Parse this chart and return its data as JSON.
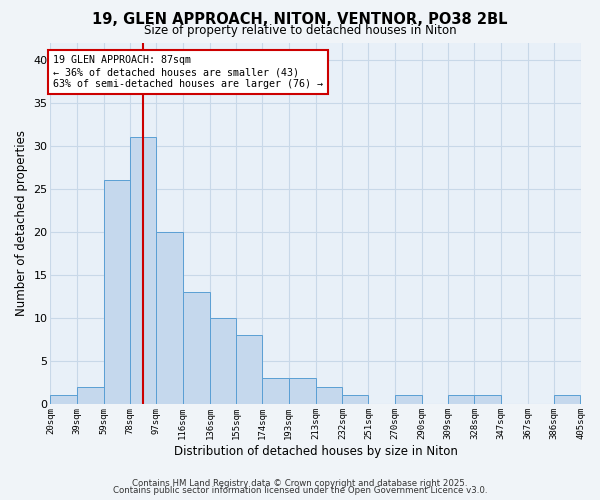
{
  "title": "19, GLEN APPROACH, NITON, VENTNOR, PO38 2BL",
  "subtitle": "Size of property relative to detached houses in Niton",
  "xlabel": "Distribution of detached houses by size in Niton",
  "ylabel": "Number of detached properties",
  "bin_edges": [
    20,
    39,
    59,
    78,
    97,
    116,
    136,
    155,
    174,
    193,
    213,
    232,
    251,
    270,
    290,
    309,
    328,
    347,
    367,
    386,
    405
  ],
  "bar_heights": [
    1,
    2,
    26,
    31,
    20,
    13,
    10,
    8,
    3,
    3,
    2,
    1,
    0,
    1,
    0,
    1,
    1,
    0,
    0,
    1
  ],
  "bar_color": "#c5d8ed",
  "bar_edgecolor": "#5a9fd4",
  "red_line_x": 87,
  "ylim": [
    0,
    42
  ],
  "yticks": [
    0,
    5,
    10,
    15,
    20,
    25,
    30,
    35,
    40
  ],
  "annotation_text": "19 GLEN APPROACH: 87sqm\n← 36% of detached houses are smaller (43)\n63% of semi-detached houses are larger (76) →",
  "annotation_box_color": "#ffffff",
  "annotation_box_edgecolor": "#cc0000",
  "red_line_color": "#cc0000",
  "footer_text1": "Contains HM Land Registry data © Crown copyright and database right 2025.",
  "footer_text2": "Contains public sector information licensed under the Open Government Licence v3.0.",
  "background_color": "#f0f4f8",
  "plot_bg_color": "#e8f0f8",
  "grid_color": "#c8d8e8",
  "tick_labels": [
    "20sqm",
    "39sqm",
    "59sqm",
    "78sqm",
    "97sqm",
    "116sqm",
    "136sqm",
    "155sqm",
    "174sqm",
    "193sqm",
    "213sqm",
    "232sqm",
    "251sqm",
    "270sqm",
    "290sqm",
    "309sqm",
    "328sqm",
    "347sqm",
    "367sqm",
    "386sqm",
    "405sqm"
  ]
}
